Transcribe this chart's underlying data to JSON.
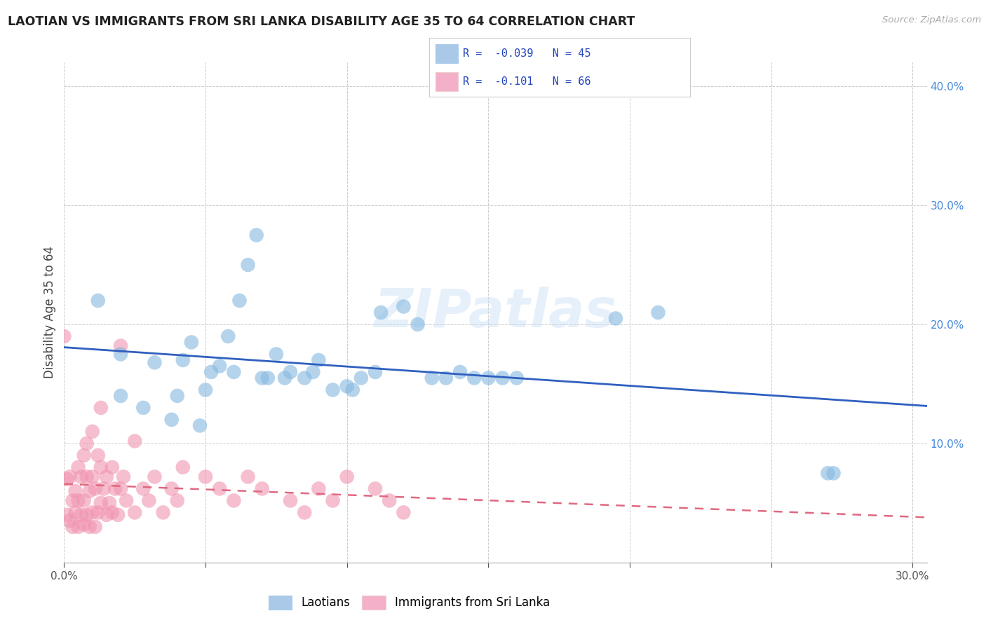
{
  "title": "LAOTIAN VS IMMIGRANTS FROM SRI LANKA DISABILITY AGE 35 TO 64 CORRELATION CHART",
  "source": "Source: ZipAtlas.com",
  "ylabel": "Disability Age 35 to 64",
  "xlim": [
    0.0,
    0.305
  ],
  "ylim": [
    0.0,
    0.42
  ],
  "xtick_vals": [
    0.0,
    0.05,
    0.1,
    0.15,
    0.2,
    0.25,
    0.3
  ],
  "xtick_labels": [
    "0.0%",
    "",
    "",
    "",
    "",
    "",
    "30.0%"
  ],
  "ytick_vals": [
    0.1,
    0.2,
    0.3,
    0.4
  ],
  "ytick_labels": [
    "10.0%",
    "20.0%",
    "30.0%",
    "40.0%"
  ],
  "legend_entry1_label": "R =  -0.039   N = 45",
  "legend_entry2_label": "R =  -0.101   N = 66",
  "legend_color1": "#aac8e8",
  "legend_color2": "#f4b0c8",
  "laotian_color": "#85b8e0",
  "srilanka_color": "#f095b0",
  "laotian_line_color": "#3060c0",
  "srilanka_line_color": "#e06880",
  "watermark": "ZIPatlas",
  "background_color": "#ffffff",
  "laotian_x": [
    0.012,
    0.02,
    0.02,
    0.028,
    0.032,
    0.038,
    0.04,
    0.042,
    0.045,
    0.048,
    0.05,
    0.052,
    0.055,
    0.058,
    0.06,
    0.062,
    0.065,
    0.068,
    0.07,
    0.072,
    0.075,
    0.078,
    0.08,
    0.085,
    0.088,
    0.09,
    0.095,
    0.1,
    0.102,
    0.105,
    0.11,
    0.112,
    0.12,
    0.125,
    0.13,
    0.135,
    0.14,
    0.145,
    0.15,
    0.155,
    0.16,
    0.195,
    0.21,
    0.27,
    0.272
  ],
  "laotian_y": [
    0.22,
    0.14,
    0.175,
    0.13,
    0.168,
    0.12,
    0.14,
    0.17,
    0.185,
    0.115,
    0.145,
    0.16,
    0.165,
    0.19,
    0.16,
    0.22,
    0.25,
    0.275,
    0.155,
    0.155,
    0.175,
    0.155,
    0.16,
    0.155,
    0.16,
    0.17,
    0.145,
    0.148,
    0.145,
    0.155,
    0.16,
    0.21,
    0.215,
    0.2,
    0.155,
    0.155,
    0.16,
    0.155,
    0.155,
    0.155,
    0.155,
    0.205,
    0.21,
    0.075,
    0.075
  ],
  "srilanka_x": [
    0.001,
    0.001,
    0.002,
    0.002,
    0.003,
    0.003,
    0.004,
    0.004,
    0.005,
    0.005,
    0.005,
    0.006,
    0.006,
    0.007,
    0.007,
    0.007,
    0.008,
    0.008,
    0.008,
    0.009,
    0.009,
    0.01,
    0.01,
    0.01,
    0.011,
    0.011,
    0.012,
    0.012,
    0.013,
    0.013,
    0.013,
    0.014,
    0.015,
    0.015,
    0.016,
    0.017,
    0.017,
    0.018,
    0.019,
    0.02,
    0.02,
    0.021,
    0.022,
    0.025,
    0.025,
    0.028,
    0.03,
    0.032,
    0.035,
    0.038,
    0.04,
    0.042,
    0.05,
    0.055,
    0.06,
    0.065,
    0.07,
    0.08,
    0.085,
    0.09,
    0.095,
    0.1,
    0.11,
    0.115,
    0.12,
    0.0
  ],
  "srilanka_y": [
    0.04,
    0.07,
    0.035,
    0.072,
    0.03,
    0.052,
    0.042,
    0.06,
    0.03,
    0.052,
    0.08,
    0.04,
    0.072,
    0.032,
    0.052,
    0.09,
    0.04,
    0.072,
    0.1,
    0.03,
    0.06,
    0.042,
    0.072,
    0.11,
    0.03,
    0.062,
    0.042,
    0.09,
    0.05,
    0.08,
    0.13,
    0.062,
    0.04,
    0.072,
    0.05,
    0.042,
    0.08,
    0.062,
    0.04,
    0.062,
    0.182,
    0.072,
    0.052,
    0.042,
    0.102,
    0.062,
    0.052,
    0.072,
    0.042,
    0.062,
    0.052,
    0.08,
    0.072,
    0.062,
    0.052,
    0.072,
    0.062,
    0.052,
    0.042,
    0.062,
    0.052,
    0.072,
    0.062,
    0.052,
    0.042,
    0.19
  ]
}
